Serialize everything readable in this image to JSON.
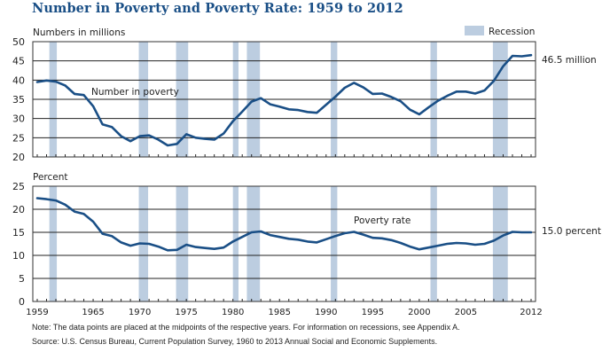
{
  "title": "Number in Poverty and Poverty Rate: 1959 to 2012",
  "legend": {
    "label": "Recession",
    "color": "#bccde0"
  },
  "notes": {
    "note": "Note: The data points are placed at the midpoints of the respective years. For information on recessions, see Appendix A.",
    "source": "Source: U.S. Census Bureau, Current Population Survey, 1960 to 2013 Annual Social and Economic Supplements."
  },
  "colors": {
    "line": "#1a4f86",
    "recession": "#bccde0",
    "grid": "#222222"
  },
  "chart_data": [
    {
      "type": "line",
      "title": "Number in poverty",
      "ylabel": "Numbers in millions",
      "xlabel": "",
      "ylim": [
        20,
        50
      ],
      "yticks": [
        20,
        25,
        30,
        35,
        40,
        45,
        50
      ],
      "xlim": [
        1959,
        2012
      ],
      "xticks": [
        1959,
        1965,
        1970,
        1975,
        1980,
        1985,
        1990,
        1995,
        2000,
        2005,
        2012
      ],
      "grid": true,
      "series_label": "Number in poverty",
      "end_label": "46.5 million",
      "recessions": [
        [
          1960.3,
          1961.1
        ],
        [
          1969.9,
          1970.9
        ],
        [
          1973.9,
          1975.2
        ],
        [
          1980.0,
          1980.6
        ],
        [
          1981.5,
          1982.9
        ],
        [
          1990.5,
          1991.2
        ],
        [
          2001.2,
          2001.9
        ],
        [
          2007.9,
          2009.5
        ]
      ],
      "x": [
        1959,
        1960,
        1961,
        1962,
        1963,
        1964,
        1965,
        1966,
        1967,
        1968,
        1969,
        1970,
        1971,
        1972,
        1973,
        1974,
        1975,
        1976,
        1977,
        1978,
        1979,
        1980,
        1981,
        1982,
        1983,
        1984,
        1985,
        1986,
        1987,
        1988,
        1989,
        1990,
        1991,
        1992,
        1993,
        1994,
        1995,
        1996,
        1997,
        1998,
        1999,
        2000,
        2001,
        2002,
        2003,
        2004,
        2005,
        2006,
        2007,
        2008,
        2009,
        2010,
        2011,
        2012
      ],
      "values": [
        39.5,
        39.9,
        39.6,
        38.6,
        36.4,
        36.1,
        33.2,
        28.5,
        27.8,
        25.4,
        24.1,
        25.4,
        25.6,
        24.5,
        23.0,
        23.4,
        25.9,
        25.0,
        24.7,
        24.5,
        26.1,
        29.3,
        31.8,
        34.4,
        35.3,
        33.7,
        33.1,
        32.4,
        32.2,
        31.7,
        31.5,
        33.6,
        35.7,
        38.0,
        39.3,
        38.1,
        36.4,
        36.5,
        35.6,
        34.5,
        32.3,
        31.1,
        32.9,
        34.6,
        35.9,
        37.0,
        37.0,
        36.5,
        37.3,
        39.8,
        43.6,
        46.3,
        46.2,
        46.5
      ]
    },
    {
      "type": "line",
      "title": "Poverty rate",
      "ylabel": "Percent",
      "xlabel": "",
      "ylim": [
        0,
        25
      ],
      "yticks": [
        0,
        5,
        10,
        15,
        20,
        25
      ],
      "xlim": [
        1959,
        2012
      ],
      "xticks": [
        1959,
        1965,
        1970,
        1975,
        1980,
        1985,
        1990,
        1995,
        2000,
        2005,
        2012
      ],
      "grid": true,
      "series_label": "Poverty rate",
      "end_label": "15.0 percent",
      "recessions": [
        [
          1960.3,
          1961.1
        ],
        [
          1969.9,
          1970.9
        ],
        [
          1973.9,
          1975.2
        ],
        [
          1980.0,
          1980.6
        ],
        [
          1981.5,
          1982.9
        ],
        [
          1990.5,
          1991.2
        ],
        [
          2001.2,
          2001.9
        ],
        [
          2007.9,
          2009.5
        ]
      ],
      "x": [
        1959,
        1960,
        1961,
        1962,
        1963,
        1964,
        1965,
        1966,
        1967,
        1968,
        1969,
        1970,
        1971,
        1972,
        1973,
        1974,
        1975,
        1976,
        1977,
        1978,
        1979,
        1980,
        1981,
        1982,
        1983,
        1984,
        1985,
        1986,
        1987,
        1988,
        1989,
        1990,
        1991,
        1992,
        1993,
        1994,
        1995,
        1996,
        1997,
        1998,
        1999,
        2000,
        2001,
        2002,
        2003,
        2004,
        2005,
        2006,
        2007,
        2008,
        2009,
        2010,
        2011,
        2012
      ],
      "values": [
        22.4,
        22.2,
        21.9,
        21.0,
        19.5,
        19.0,
        17.3,
        14.7,
        14.2,
        12.8,
        12.1,
        12.6,
        12.5,
        11.9,
        11.1,
        11.2,
        12.3,
        11.8,
        11.6,
        11.4,
        11.7,
        13.0,
        14.0,
        15.0,
        15.2,
        14.4,
        14.0,
        13.6,
        13.4,
        13.0,
        12.8,
        13.5,
        14.2,
        14.8,
        15.1,
        14.5,
        13.8,
        13.7,
        13.3,
        12.7,
        11.9,
        11.3,
        11.7,
        12.1,
        12.5,
        12.7,
        12.6,
        12.3,
        12.5,
        13.2,
        14.3,
        15.1,
        15.0,
        15.0
      ]
    }
  ]
}
